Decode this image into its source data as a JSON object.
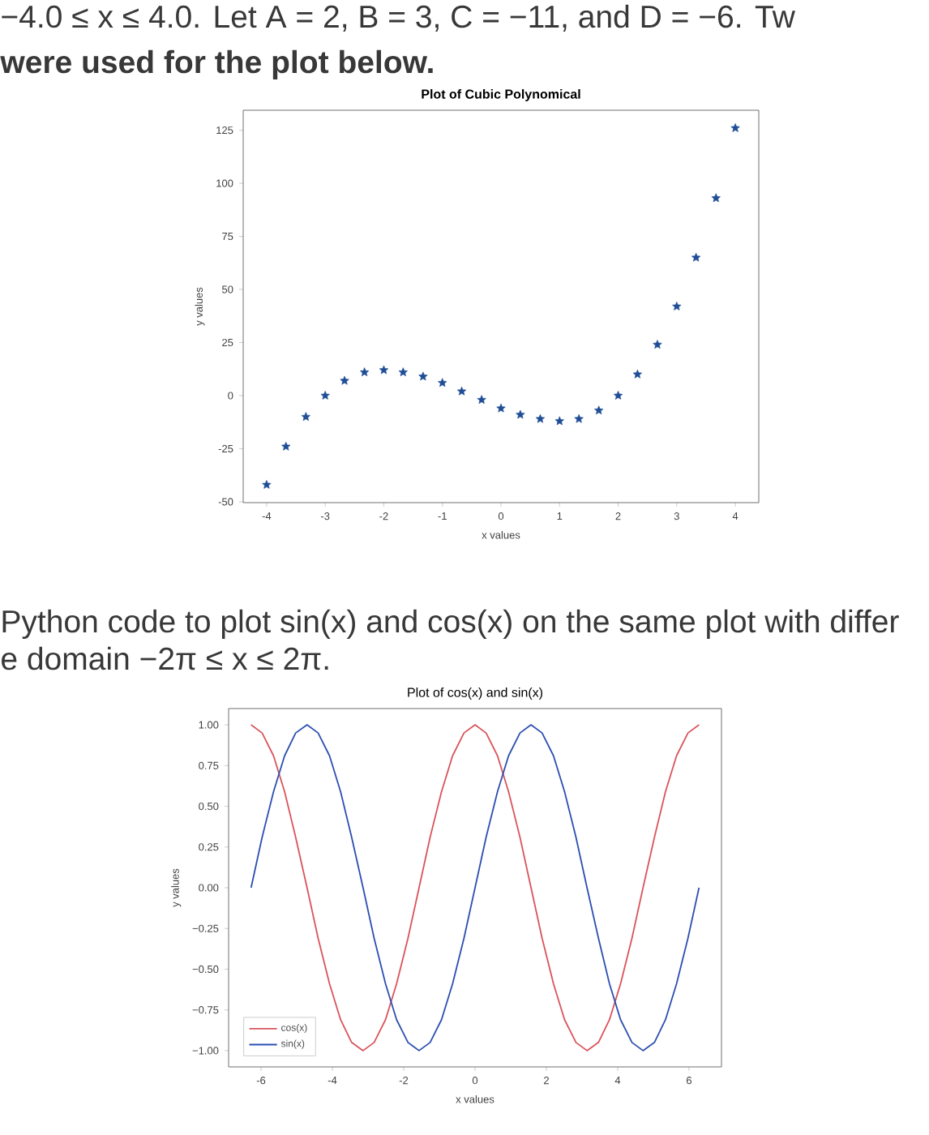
{
  "chart_data": [
    {
      "type": "scatter",
      "title": "Plot of Cubic Polynomical",
      "xlabel": "x values",
      "ylabel": "y values",
      "annotations": [
        "−4.0 ≤ x ≤ 4.0. Let A = 2, B = 3, C = −11, and D = −6. Tw",
        "were used for the plot below."
      ],
      "x": [
        -4,
        -3.67,
        -3.33,
        -3,
        -2.67,
        -2.33,
        -2,
        -1.67,
        -1.33,
        -1,
        -0.67,
        -0.33,
        0,
        0.33,
        0.67,
        1,
        1.33,
        1.67,
        2,
        2.33,
        2.67,
        3,
        3.33,
        3.67,
        4
      ],
      "values": [
        -42,
        -24,
        -10,
        0,
        7,
        11,
        12,
        11,
        9,
        6,
        2,
        -2,
        -6,
        -9,
        -11,
        -12,
        -11,
        -7,
        0,
        10,
        24,
        42,
        65,
        93,
        126
      ],
      "color": "#1f4e96",
      "marker": "star",
      "xlim": [
        -4.4,
        4.4
      ],
      "ylim": [
        -50.4,
        134.4
      ],
      "xticks": [
        -4,
        -3,
        -2,
        -1,
        0,
        1,
        2,
        3,
        4
      ],
      "yticks": [
        -50,
        -25,
        0,
        25,
        50,
        75,
        100,
        125
      ]
    },
    {
      "type": "line",
      "title": "Plot of cos(x) and sin(x)",
      "xlabel": "x values",
      "ylabel": "y values",
      "annotations": [
        "Python code to plot sin(x) and cos(x) on the same plot with differ",
        "e domain −2π ≤ x ≤ 2π."
      ],
      "x": [
        -6.28,
        -5.97,
        -5.65,
        -5.34,
        -5.03,
        -4.71,
        -4.4,
        -4.08,
        -3.77,
        -3.46,
        -3.14,
        -2.83,
        -2.51,
        -2.2,
        -1.88,
        -1.57,
        -1.26,
        -0.94,
        -0.63,
        -0.31,
        0,
        0.31,
        0.63,
        0.94,
        1.26,
        1.57,
        1.88,
        2.2,
        2.51,
        2.83,
        3.14,
        3.46,
        3.77,
        4.08,
        4.4,
        4.71,
        5.03,
        5.34,
        5.65,
        5.97,
        6.28
      ],
      "series": [
        {
          "name": "cos(x)",
          "color": "#d9545c",
          "values": [
            1,
            0.95,
            0.81,
            0.59,
            0.31,
            0,
            -0.31,
            -0.59,
            -0.81,
            -0.95,
            -1,
            -0.95,
            -0.81,
            -0.59,
            -0.31,
            0,
            0.31,
            0.59,
            0.81,
            0.95,
            1,
            0.95,
            0.81,
            0.59,
            0.31,
            0,
            -0.31,
            -0.59,
            -0.81,
            -0.95,
            -1,
            -0.95,
            -0.81,
            -0.59,
            -0.31,
            0,
            0.31,
            0.59,
            0.81,
            0.95,
            1
          ]
        },
        {
          "name": "sin(x)",
          "color": "#2c4fb0",
          "values": [
            0,
            0.31,
            0.59,
            0.81,
            0.95,
            1,
            0.95,
            0.81,
            0.59,
            0.31,
            0,
            -0.31,
            -0.59,
            -0.81,
            -0.95,
            -1,
            -0.95,
            -0.81,
            -0.59,
            -0.31,
            0,
            0.31,
            0.59,
            0.81,
            0.95,
            1,
            0.95,
            0.81,
            0.59,
            0.31,
            0,
            -0.31,
            -0.59,
            -0.81,
            -0.95,
            -1,
            -0.95,
            -0.81,
            -0.59,
            -0.31,
            0
          ]
        }
      ],
      "legend": "bottom left",
      "xlim": [
        -6.91,
        6.91
      ],
      "ylim": [
        -1.1,
        1.1
      ],
      "xticks": [
        -6,
        -4,
        -2,
        0,
        2,
        4,
        6
      ],
      "yticks": [
        {
          "value": -1,
          "label": "−1.00"
        },
        {
          "value": -0.75,
          "label": "−0.75"
        },
        {
          "value": -0.5,
          "label": "−0.50"
        },
        {
          "value": -0.25,
          "label": "−0.25"
        },
        {
          "value": 0,
          "label": "0.00"
        },
        {
          "value": 0.25,
          "label": "0.25"
        },
        {
          "value": 0.5,
          "label": "0.50"
        },
        {
          "value": 0.75,
          "label": "0.75"
        },
        {
          "value": 1,
          "label": "1.00"
        }
      ]
    }
  ]
}
